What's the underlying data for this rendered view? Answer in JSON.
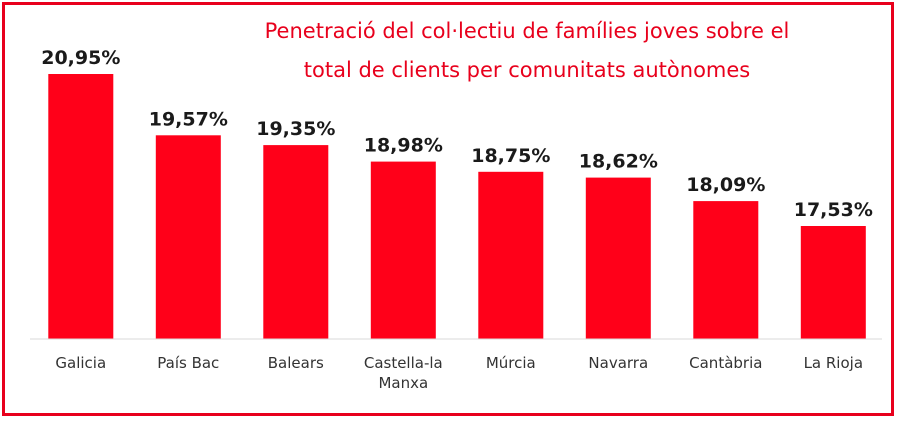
{
  "chart_data": {
    "type": "bar",
    "title_lines": [
      "Penetració del col·lectiu de famílies joves sobre el",
      "total de clients per comunitats autònomes"
    ],
    "categories": [
      [
        "Galicia"
      ],
      [
        "País Bac"
      ],
      [
        "Balears"
      ],
      [
        "Castella-la",
        "Manxa"
      ],
      [
        "Múrcia"
      ],
      [
        "Navarra"
      ],
      [
        "Cantàbria"
      ],
      [
        "La Rioja"
      ]
    ],
    "values": [
      20.95,
      19.57,
      19.35,
      18.98,
      18.75,
      18.62,
      18.09,
      17.53
    ],
    "value_labels": [
      "20,95%",
      "19,57%",
      "19,35%",
      "18,98%",
      "18,75%",
      "18,62%",
      "18,09%",
      "17,53%"
    ],
    "bar_color": "#ff0019",
    "title_color": "#e8001c",
    "grid": false,
    "legend": "none"
  }
}
